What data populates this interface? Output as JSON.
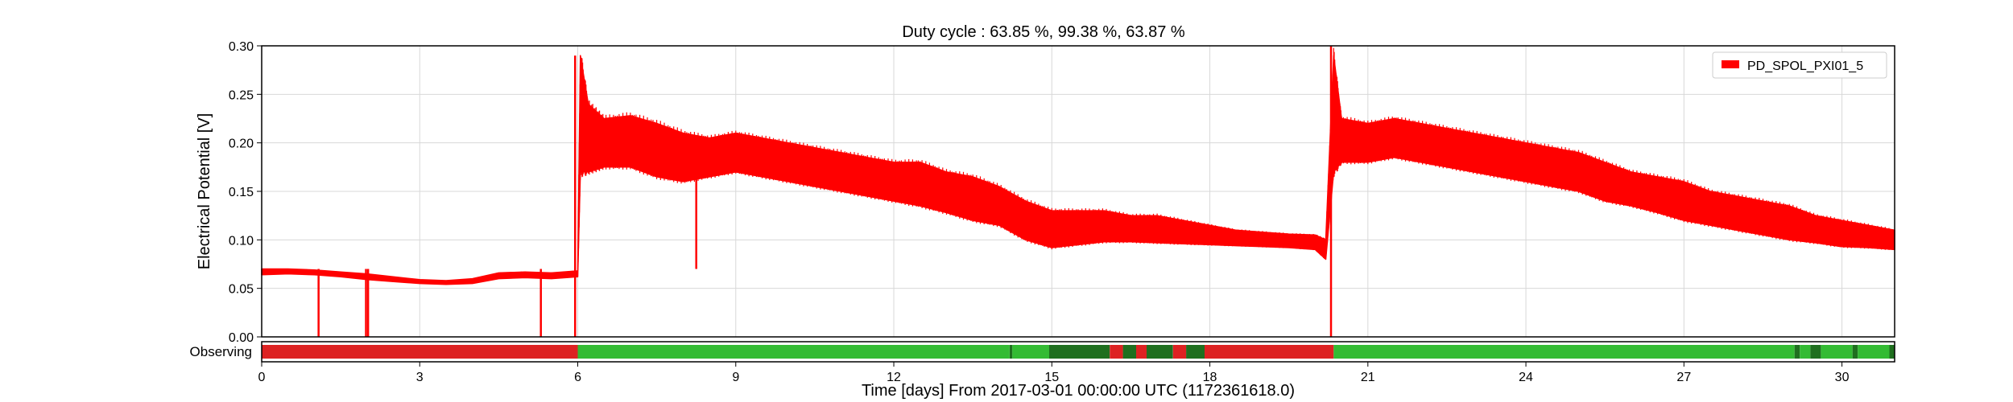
{
  "chart_data": {
    "type": "line",
    "title": "Duty cycle : 63.85 %, 99.38 %, 63.87 %",
    "xlabel": "Time [days] From 2017-03-01 00:00:00 UTC (1172361618.0)",
    "ylabel": "Electrical Potential [V]",
    "xlim": [
      0,
      31
    ],
    "ylim": [
      0,
      0.3
    ],
    "x_ticks": [
      0,
      3,
      6,
      9,
      12,
      15,
      18,
      21,
      24,
      27,
      30
    ],
    "y_ticks": [
      0.0,
      0.05,
      0.1,
      0.15,
      0.2,
      0.25,
      0.3
    ],
    "x_tick_labels": [
      "0",
      "3",
      "6",
      "9",
      "12",
      "15",
      "18",
      "21",
      "24",
      "27",
      "30"
    ],
    "y_tick_labels": [
      "0.00",
      "0.05",
      "0.10",
      "0.15",
      "0.20",
      "0.25",
      "0.30"
    ],
    "grid": true,
    "legend_position": "top-right",
    "series": [
      {
        "name": "PD_SPOL_PXI01_5",
        "color": "#ff0000",
        "upper": [
          [
            0,
            0.07
          ],
          [
            0.5,
            0.07
          ],
          [
            1,
            0.069
          ],
          [
            1.5,
            0.067
          ],
          [
            2,
            0.065
          ],
          [
            2.5,
            0.062
          ],
          [
            3,
            0.059
          ],
          [
            3.5,
            0.058
          ],
          [
            4,
            0.06
          ],
          [
            4.5,
            0.066
          ],
          [
            5,
            0.067
          ],
          [
            5.5,
            0.066
          ],
          [
            6,
            0.068
          ],
          [
            6.05,
            0.29
          ],
          [
            6.2,
            0.24
          ],
          [
            6.5,
            0.225
          ],
          [
            7,
            0.228
          ],
          [
            7.5,
            0.22
          ],
          [
            8,
            0.21
          ],
          [
            8.5,
            0.205
          ],
          [
            9,
            0.21
          ],
          [
            9.5,
            0.205
          ],
          [
            10,
            0.2
          ],
          [
            10.5,
            0.195
          ],
          [
            11,
            0.19
          ],
          [
            11.5,
            0.185
          ],
          [
            12,
            0.18
          ],
          [
            12.5,
            0.18
          ],
          [
            13,
            0.17
          ],
          [
            13.5,
            0.165
          ],
          [
            14,
            0.155
          ],
          [
            14.5,
            0.14
          ],
          [
            15,
            0.13
          ],
          [
            15.5,
            0.13
          ],
          [
            16,
            0.13
          ],
          [
            16.5,
            0.125
          ],
          [
            17,
            0.125
          ],
          [
            17.5,
            0.12
          ],
          [
            18,
            0.115
          ],
          [
            18.5,
            0.11
          ],
          [
            19,
            0.108
          ],
          [
            19.5,
            0.106
          ],
          [
            20,
            0.105
          ],
          [
            20.2,
            0.1
          ],
          [
            20.35,
            0.29
          ],
          [
            20.5,
            0.225
          ],
          [
            21,
            0.22
          ],
          [
            21.5,
            0.225
          ],
          [
            22,
            0.22
          ],
          [
            22.5,
            0.215
          ],
          [
            23,
            0.21
          ],
          [
            23.5,
            0.205
          ],
          [
            24,
            0.2
          ],
          [
            24.5,
            0.195
          ],
          [
            25,
            0.19
          ],
          [
            25.5,
            0.18
          ],
          [
            26,
            0.17
          ],
          [
            26.5,
            0.165
          ],
          [
            27,
            0.16
          ],
          [
            27.5,
            0.15
          ],
          [
            28,
            0.145
          ],
          [
            28.5,
            0.14
          ],
          [
            29,
            0.135
          ],
          [
            29.5,
            0.125
          ],
          [
            30,
            0.12
          ],
          [
            30.5,
            0.115
          ],
          [
            31,
            0.11
          ]
        ],
        "lower": [
          [
            0,
            0.064
          ],
          [
            0.5,
            0.065
          ],
          [
            1,
            0.064
          ],
          [
            1.5,
            0.062
          ],
          [
            2,
            0.059
          ],
          [
            2.5,
            0.057
          ],
          [
            3,
            0.055
          ],
          [
            3.5,
            0.054
          ],
          [
            4,
            0.055
          ],
          [
            4.5,
            0.06
          ],
          [
            5,
            0.061
          ],
          [
            5.5,
            0.06
          ],
          [
            6,
            0.062
          ],
          [
            6.05,
            0.17
          ],
          [
            6.2,
            0.17
          ],
          [
            6.5,
            0.175
          ],
          [
            7,
            0.175
          ],
          [
            7.5,
            0.165
          ],
          [
            8,
            0.16
          ],
          [
            8.5,
            0.165
          ],
          [
            9,
            0.17
          ],
          [
            9.5,
            0.165
          ],
          [
            10,
            0.16
          ],
          [
            10.5,
            0.155
          ],
          [
            11,
            0.15
          ],
          [
            11.5,
            0.145
          ],
          [
            12,
            0.14
          ],
          [
            12.5,
            0.135
          ],
          [
            13,
            0.128
          ],
          [
            13.5,
            0.12
          ],
          [
            14,
            0.115
          ],
          [
            14.5,
            0.1
          ],
          [
            15,
            0.092
          ],
          [
            15.5,
            0.095
          ],
          [
            16,
            0.098
          ],
          [
            16.5,
            0.098
          ],
          [
            17,
            0.097
          ],
          [
            17.5,
            0.096
          ],
          [
            18,
            0.095
          ],
          [
            18.5,
            0.094
          ],
          [
            19,
            0.093
          ],
          [
            19.5,
            0.092
          ],
          [
            20,
            0.09
          ],
          [
            20.2,
            0.08
          ],
          [
            20.35,
            0.17
          ],
          [
            20.5,
            0.18
          ],
          [
            21,
            0.18
          ],
          [
            21.5,
            0.185
          ],
          [
            22,
            0.18
          ],
          [
            22.5,
            0.175
          ],
          [
            23,
            0.17
          ],
          [
            23.5,
            0.165
          ],
          [
            24,
            0.16
          ],
          [
            24.5,
            0.155
          ],
          [
            25,
            0.15
          ],
          [
            25.5,
            0.14
          ],
          [
            26,
            0.135
          ],
          [
            26.5,
            0.128
          ],
          [
            27,
            0.12
          ],
          [
            27.5,
            0.115
          ],
          [
            28,
            0.11
          ],
          [
            28.5,
            0.105
          ],
          [
            29,
            0.1
          ],
          [
            29.5,
            0.097
          ],
          [
            30,
            0.093
          ],
          [
            30.5,
            0.092
          ],
          [
            31,
            0.09
          ]
        ],
        "dips": [
          [
            1.08,
            0.0
          ],
          [
            1.98,
            0.0
          ],
          [
            2.02,
            0.0
          ],
          [
            5.3,
            0.0
          ],
          [
            5.95,
            0.0
          ],
          [
            8.25,
            0.07
          ],
          [
            20.3,
            0.0
          ]
        ]
      }
    ],
    "segments_label": "Observing",
    "segments": [
      {
        "start": 0,
        "end": 6.0,
        "state": "off",
        "color": "#dd2222"
      },
      {
        "start": 6.0,
        "end": 14.2,
        "state": "on",
        "color": "#33bb33"
      },
      {
        "start": 14.2,
        "end": 14.25,
        "state": "flag",
        "color": "#1f6f1f"
      },
      {
        "start": 14.25,
        "end": 14.95,
        "state": "on",
        "color": "#33bb33"
      },
      {
        "start": 14.95,
        "end": 16.1,
        "state": "flag",
        "color": "#1f6f1f"
      },
      {
        "start": 16.1,
        "end": 16.35,
        "state": "off",
        "color": "#dd2222"
      },
      {
        "start": 16.35,
        "end": 16.6,
        "state": "flag",
        "color": "#1f6f1f"
      },
      {
        "start": 16.6,
        "end": 16.8,
        "state": "off",
        "color": "#dd2222"
      },
      {
        "start": 16.8,
        "end": 17.3,
        "state": "flag",
        "color": "#1f6f1f"
      },
      {
        "start": 17.3,
        "end": 17.55,
        "state": "off",
        "color": "#dd2222"
      },
      {
        "start": 17.55,
        "end": 17.9,
        "state": "flag",
        "color": "#1f6f1f"
      },
      {
        "start": 17.9,
        "end": 20.35,
        "state": "off",
        "color": "#dd2222"
      },
      {
        "start": 20.35,
        "end": 29.1,
        "state": "on",
        "color": "#33bb33"
      },
      {
        "start": 29.1,
        "end": 29.2,
        "state": "flag",
        "color": "#1f6f1f"
      },
      {
        "start": 29.2,
        "end": 29.4,
        "state": "on",
        "color": "#33bb33"
      },
      {
        "start": 29.4,
        "end": 29.6,
        "state": "flag",
        "color": "#1f6f1f"
      },
      {
        "start": 29.6,
        "end": 30.2,
        "state": "on",
        "color": "#33bb33"
      },
      {
        "start": 30.2,
        "end": 30.3,
        "state": "flag",
        "color": "#1f6f1f"
      },
      {
        "start": 30.3,
        "end": 30.9,
        "state": "on",
        "color": "#33bb33"
      },
      {
        "start": 30.9,
        "end": 31,
        "state": "flag",
        "color": "#1f6f1f"
      }
    ]
  }
}
